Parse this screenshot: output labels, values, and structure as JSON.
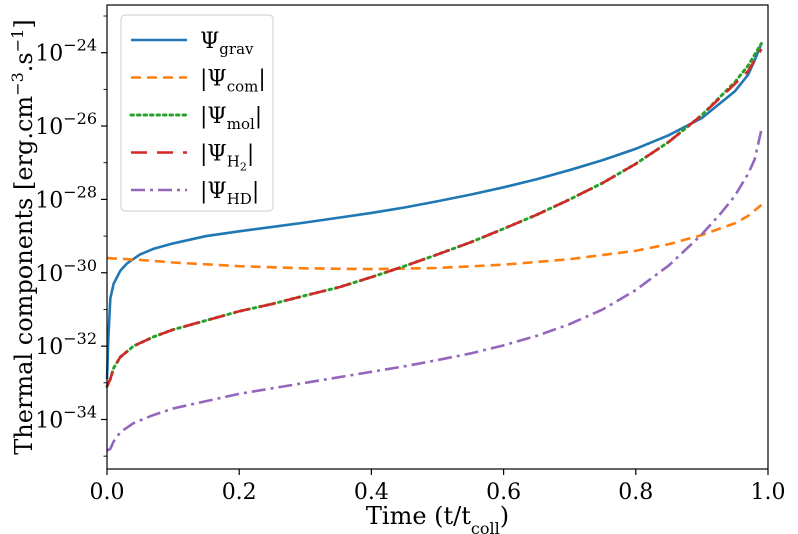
{
  "chart_data": {
    "type": "line",
    "title": "",
    "xlabel": "Time (t/t",
    "xlabel_sub": "coll",
    "xlabel_end": ")",
    "ylabel": "Thermal components [erg.cm",
    "ylabel_sup1": "−3",
    "ylabel_mid": ".s",
    "ylabel_sup2": "−1",
    "ylabel_end": "]",
    "xlim": [
      0.0,
      1.0
    ],
    "ylim_log10": [
      -35.35,
      -22.7
    ],
    "yscale": "log",
    "grid": false,
    "legend_position": "top-left",
    "x_ticks": [
      {
        "value": 0.0,
        "label": "0.0"
      },
      {
        "value": 0.2,
        "label": "0.2"
      },
      {
        "value": 0.4,
        "label": "0.4"
      },
      {
        "value": 0.6,
        "label": "0.6"
      },
      {
        "value": 0.8,
        "label": "0.8"
      },
      {
        "value": 1.0,
        "label": "1.0"
      }
    ],
    "y_ticks": [
      {
        "exp": -34,
        "base": "10",
        "power": "−34"
      },
      {
        "exp": -32,
        "base": "10",
        "power": "−32"
      },
      {
        "exp": -30,
        "base": "10",
        "power": "−30"
      },
      {
        "exp": -28,
        "base": "10",
        "power": "−28"
      },
      {
        "exp": -26,
        "base": "10",
        "power": "−26"
      },
      {
        "exp": -24,
        "base": "10",
        "power": "−24"
      }
    ],
    "series": [
      {
        "id": "grav",
        "name": "Ψ",
        "name_sub": "grav",
        "bars": false,
        "color": "#1f77b4",
        "style": "solid",
        "x_values": [
          0.0,
          0.002,
          0.005,
          0.01,
          0.02,
          0.03,
          0.05,
          0.07,
          0.1,
          0.15,
          0.2,
          0.25,
          0.3,
          0.35,
          0.4,
          0.45,
          0.5,
          0.55,
          0.6,
          0.65,
          0.7,
          0.75,
          0.8,
          0.85,
          0.9,
          0.95,
          0.97,
          0.98,
          0.99
        ],
        "log10_y": [
          -32.9,
          -31.8,
          -30.7,
          -30.3,
          -29.95,
          -29.75,
          -29.5,
          -29.35,
          -29.2,
          -29.0,
          -28.87,
          -28.75,
          -28.63,
          -28.5,
          -28.37,
          -28.22,
          -28.05,
          -27.87,
          -27.67,
          -27.45,
          -27.2,
          -26.93,
          -26.62,
          -26.25,
          -25.78,
          -25.05,
          -24.6,
          -24.2,
          -23.75
        ]
      },
      {
        "id": "com",
        "name": "|Ψ",
        "name_sub": "com",
        "bars": true,
        "color": "#ff7f0e",
        "style": "dashed",
        "x_values": [
          0.0,
          0.05,
          0.1,
          0.2,
          0.3,
          0.4,
          0.5,
          0.6,
          0.7,
          0.8,
          0.85,
          0.9,
          0.95,
          0.97,
          0.99
        ],
        "log10_y": [
          -29.6,
          -29.65,
          -29.72,
          -29.82,
          -29.88,
          -29.9,
          -29.87,
          -29.78,
          -29.63,
          -29.4,
          -29.22,
          -28.97,
          -28.65,
          -28.45,
          -28.15
        ]
      },
      {
        "id": "mol",
        "name": "|Ψ",
        "name_sub": "mol",
        "bars": true,
        "color": "#2ca02c",
        "style": "dotted",
        "x_values": [
          0.0,
          0.005,
          0.01,
          0.02,
          0.04,
          0.07,
          0.1,
          0.15,
          0.2,
          0.25,
          0.3,
          0.35,
          0.4,
          0.45,
          0.5,
          0.55,
          0.6,
          0.65,
          0.7,
          0.75,
          0.8,
          0.85,
          0.9,
          0.95,
          0.97,
          0.98,
          0.99
        ],
        "log10_y": [
          -33.1,
          -32.9,
          -32.6,
          -32.3,
          -32.0,
          -31.75,
          -31.55,
          -31.3,
          -31.05,
          -30.85,
          -30.62,
          -30.4,
          -30.12,
          -29.82,
          -29.5,
          -29.17,
          -28.8,
          -28.42,
          -28.0,
          -27.55,
          -27.03,
          -26.43,
          -25.7,
          -24.8,
          -24.35,
          -24.05,
          -23.75
        ]
      },
      {
        "id": "h2",
        "name": "|Ψ",
        "name_sub": "H",
        "name_subsub": "2",
        "bars": true,
        "color": "#d62728",
        "style": "dashed-long",
        "x_values": [
          0.0,
          0.005,
          0.01,
          0.02,
          0.04,
          0.07,
          0.1,
          0.15,
          0.2,
          0.25,
          0.3,
          0.35,
          0.4,
          0.45,
          0.5,
          0.55,
          0.6,
          0.65,
          0.7,
          0.75,
          0.8,
          0.85,
          0.9,
          0.95,
          0.97,
          0.98,
          0.99
        ],
        "log10_y": [
          -33.1,
          -32.9,
          -32.6,
          -32.3,
          -32.0,
          -31.75,
          -31.55,
          -31.3,
          -31.05,
          -30.85,
          -30.62,
          -30.4,
          -30.12,
          -29.82,
          -29.5,
          -29.17,
          -28.8,
          -28.42,
          -28.0,
          -27.55,
          -27.03,
          -26.43,
          -25.7,
          -24.85,
          -24.5,
          -24.2,
          -23.9
        ]
      },
      {
        "id": "hd",
        "name": "|Ψ",
        "name_sub": "HD",
        "bars": true,
        "color": "#9467bd",
        "style": "dashdot",
        "x_values": [
          0.0,
          0.005,
          0.01,
          0.02,
          0.04,
          0.07,
          0.1,
          0.15,
          0.2,
          0.25,
          0.3,
          0.35,
          0.4,
          0.45,
          0.5,
          0.55,
          0.6,
          0.65,
          0.7,
          0.75,
          0.8,
          0.85,
          0.9,
          0.93,
          0.95,
          0.97,
          0.98,
          0.99
        ],
        "log10_y": [
          -34.85,
          -34.8,
          -34.6,
          -34.35,
          -34.1,
          -33.88,
          -33.7,
          -33.5,
          -33.3,
          -33.15,
          -33.0,
          -32.85,
          -32.7,
          -32.55,
          -32.38,
          -32.2,
          -31.98,
          -31.72,
          -31.4,
          -31.0,
          -30.47,
          -29.8,
          -28.95,
          -28.35,
          -27.9,
          -27.3,
          -26.9,
          -26.1
        ]
      }
    ]
  }
}
